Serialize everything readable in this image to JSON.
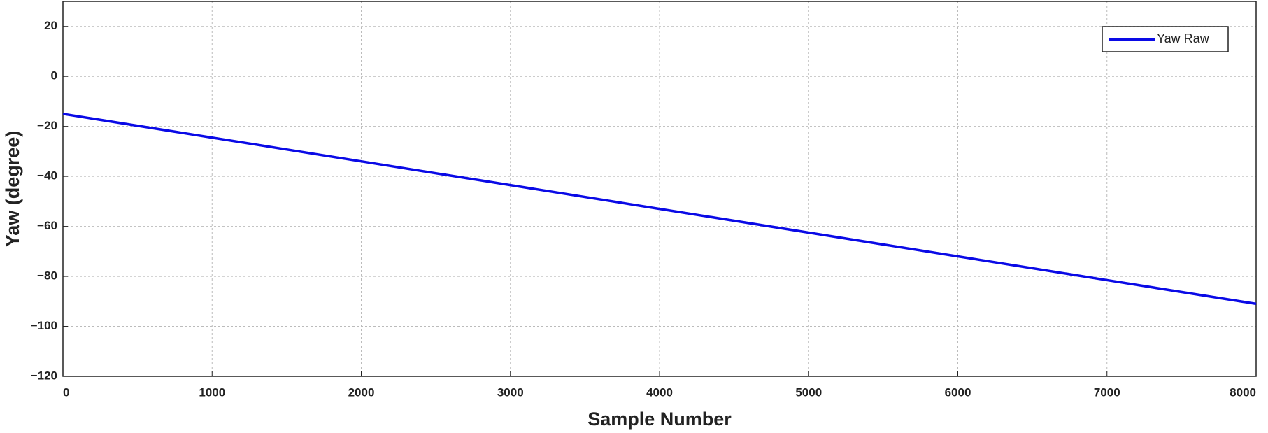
{
  "chart_data": {
    "type": "line",
    "xlabel": "Sample Number",
    "ylabel": "Yaw (degree)",
    "x": [
      0,
      1000,
      2000,
      3000,
      4000,
      5000,
      6000,
      7000,
      8000
    ],
    "series": [
      {
        "name": "Yaw Raw",
        "color": "#0a0ae6",
        "values": [
          -15,
          -24.5,
          -34,
          -43.5,
          -53,
          -62.5,
          -72,
          -81.5,
          -91
        ]
      }
    ],
    "xlim": [
      0,
      8000
    ],
    "xticks": [
      0,
      1000,
      2000,
      3000,
      4000,
      5000,
      6000,
      7000,
      8000
    ],
    "ylim": [
      -120,
      30
    ],
    "yticks": [
      {
        "value": -120,
        "label": "−120"
      },
      {
        "value": -100,
        "label": "−100"
      },
      {
        "value": -80,
        "label": "−80"
      },
      {
        "value": -60,
        "label": "−60"
      },
      {
        "value": -40,
        "label": "−40"
      },
      {
        "value": -20,
        "label": "−20"
      },
      0,
      20
    ],
    "grid": true,
    "legend_loc": "upper right"
  }
}
